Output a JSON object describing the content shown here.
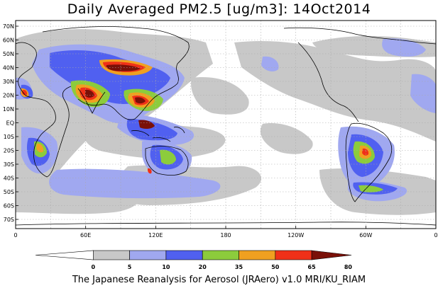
{
  "title": "Daily Averaged PM2.5 [ug/m3]: 14Oct2014",
  "footer": "The Japanese Reanalysis for Aerosol (JRAero) v1.0 MRI/KU_RIAM",
  "lat_labels": [
    "70N",
    "60N",
    "50N",
    "40N",
    "30N",
    "20N",
    "10N",
    "EQ",
    "10S",
    "20S",
    "30S",
    "40S",
    "50S",
    "60S",
    "70S"
  ],
  "lon_labels": [
    "0",
    "60E",
    "120E",
    "180",
    "120W",
    "60W",
    "0"
  ],
  "colorbar": {
    "thresholds": [
      "0",
      "5",
      "10",
      "20",
      "35",
      "50",
      "65",
      "80"
    ],
    "colors": [
      "#ffffff",
      "#c8c8c8",
      "#a0a8f0",
      "#5060f0",
      "#8ccc3c",
      "#f0a020",
      "#f03018",
      "#7a1008"
    ]
  },
  "colors": {
    "coast": "#000000",
    "grid": "#aaaaaa"
  }
}
